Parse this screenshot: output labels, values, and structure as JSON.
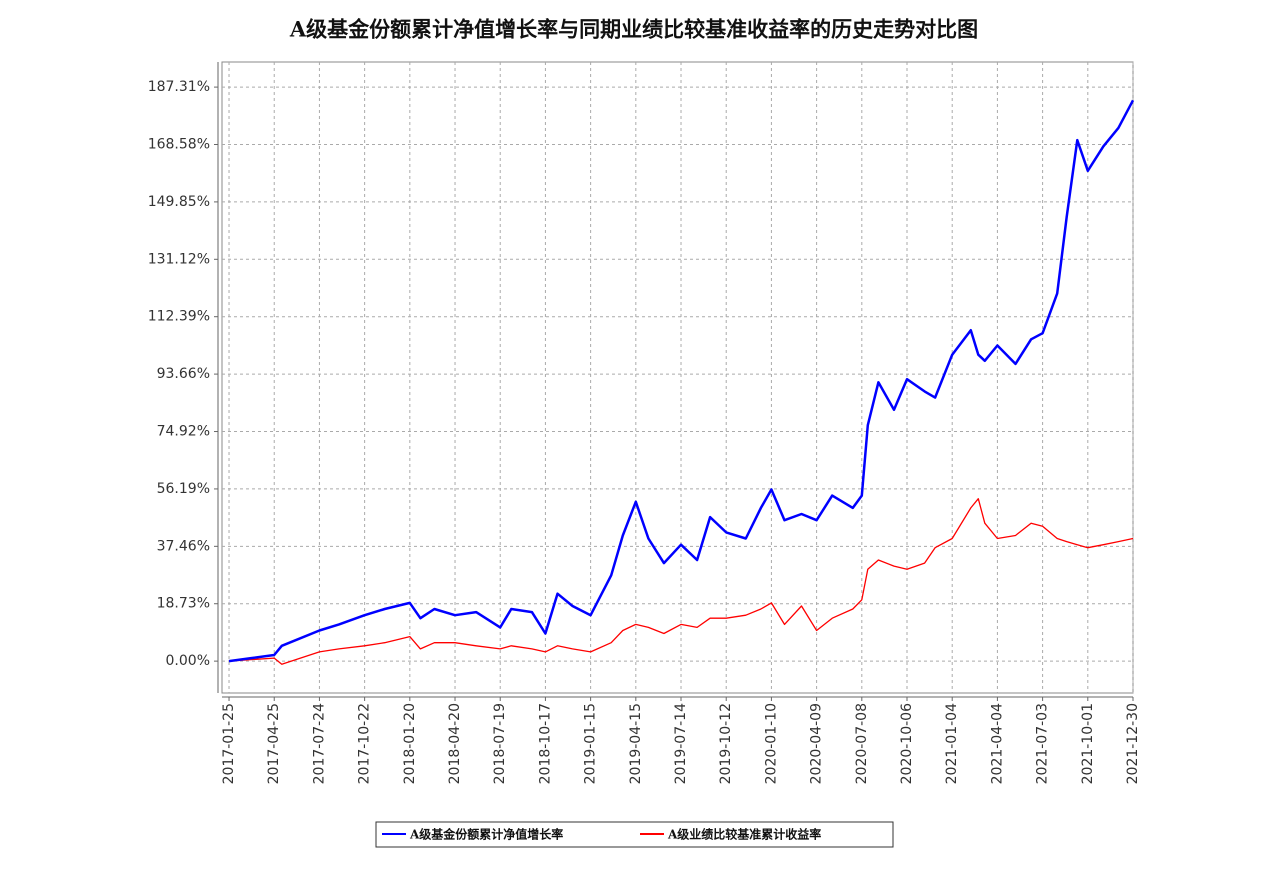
{
  "chart_data": {
    "type": "line",
    "title": "A级基金份额累计净值增长率与同期业绩比较基准收益率的历史走势对比图",
    "x": [
      "2017-01-25",
      "2017-03-10",
      "2017-04-25",
      "2017-05-10",
      "2017-07-24",
      "2017-09-01",
      "2017-10-22",
      "2017-12-01",
      "2018-01-20",
      "2018-02-10",
      "2018-03-10",
      "2018-04-20",
      "2018-06-01",
      "2018-07-19",
      "2018-08-10",
      "2018-09-20",
      "2018-10-17",
      "2018-11-10",
      "2018-12-10",
      "2019-01-15",
      "2019-02-25",
      "2019-03-20",
      "2019-04-15",
      "2019-05-10",
      "2019-06-10",
      "2019-07-14",
      "2019-08-15",
      "2019-09-10",
      "2019-10-12",
      "2019-11-20",
      "2019-12-20",
      "2020-01-10",
      "2020-02-05",
      "2020-03-10",
      "2020-04-09",
      "2020-05-10",
      "2020-06-20",
      "2020-07-08",
      "2020-07-20",
      "2020-08-10",
      "2020-09-10",
      "2020-10-06",
      "2020-11-10",
      "2020-12-01",
      "2021-01-04",
      "2021-02-10",
      "2021-02-25",
      "2021-03-10",
      "2021-04-04",
      "2021-05-10",
      "2021-06-10",
      "2021-07-03",
      "2021-08-01",
      "2021-08-20",
      "2021-09-10",
      "2021-10-01",
      "2021-11-01",
      "2021-12-01",
      "2021-12-30"
    ],
    "series": [
      {
        "name": "A级基金份额累计净值增长率",
        "color": "#0000ff",
        "values": [
          0,
          1,
          2,
          5,
          10,
          12,
          15,
          17,
          19,
          14,
          17,
          15,
          16,
          11,
          17,
          16,
          9,
          22,
          18,
          15,
          28,
          41,
          52,
          40,
          32,
          38,
          33,
          47,
          42,
          40,
          50,
          56,
          46,
          48,
          46,
          54,
          50,
          54,
          77,
          91,
          82,
          92,
          88,
          86,
          100,
          108,
          100,
          98,
          103,
          97,
          105,
          107,
          120,
          145,
          170,
          160,
          168,
          174,
          183
        ]
      },
      {
        "name": "A级业绩比较基准累计收益率",
        "color": "#ff0000",
        "values": [
          0,
          0.5,
          1,
          -1,
          3,
          4,
          5,
          6,
          8,
          4,
          6,
          6,
          5,
          4,
          5,
          4,
          3,
          5,
          4,
          3,
          6,
          10,
          12,
          11,
          9,
          12,
          11,
          14,
          14,
          15,
          17,
          19,
          12,
          18,
          10,
          14,
          17,
          20,
          30,
          33,
          31,
          30,
          32,
          37,
          40,
          50,
          53,
          45,
          40,
          41,
          45,
          44,
          40,
          39,
          38,
          37,
          38,
          39,
          40
        ]
      }
    ],
    "xlim": [
      "2017-01-11",
      "2021-12-30"
    ],
    "xticks": [
      "2017-01-25",
      "2017-04-25",
      "2017-07-24",
      "2017-10-22",
      "2018-01-20",
      "2018-04-20",
      "2018-07-19",
      "2018-10-17",
      "2019-01-15",
      "2019-04-15",
      "2019-07-14",
      "2019-10-12",
      "2020-01-10",
      "2020-04-09",
      "2020-07-08",
      "2020-10-06",
      "2021-01-04",
      "2021-04-04",
      "2021-07-03",
      "2021-10-01",
      "2021-12-30"
    ],
    "ylim": [
      -10.4,
      195.5
    ],
    "yticks": [
      {
        "value": 0,
        "label": "0.00%"
      },
      {
        "value": 18.73,
        "label": "18.73%"
      },
      {
        "value": 37.46,
        "label": "37.46%"
      },
      {
        "value": 56.19,
        "label": "56.19%"
      },
      {
        "value": 74.92,
        "label": "74.92%"
      },
      {
        "value": 93.66,
        "label": "93.66%"
      },
      {
        "value": 112.39,
        "label": "112.39%"
      },
      {
        "value": 131.12,
        "label": "131.12%"
      },
      {
        "value": 149.85,
        "label": "149.85%"
      },
      {
        "value": 168.58,
        "label": "168.58%"
      },
      {
        "value": 187.31,
        "label": "187.31%"
      }
    ],
    "grid": true
  }
}
